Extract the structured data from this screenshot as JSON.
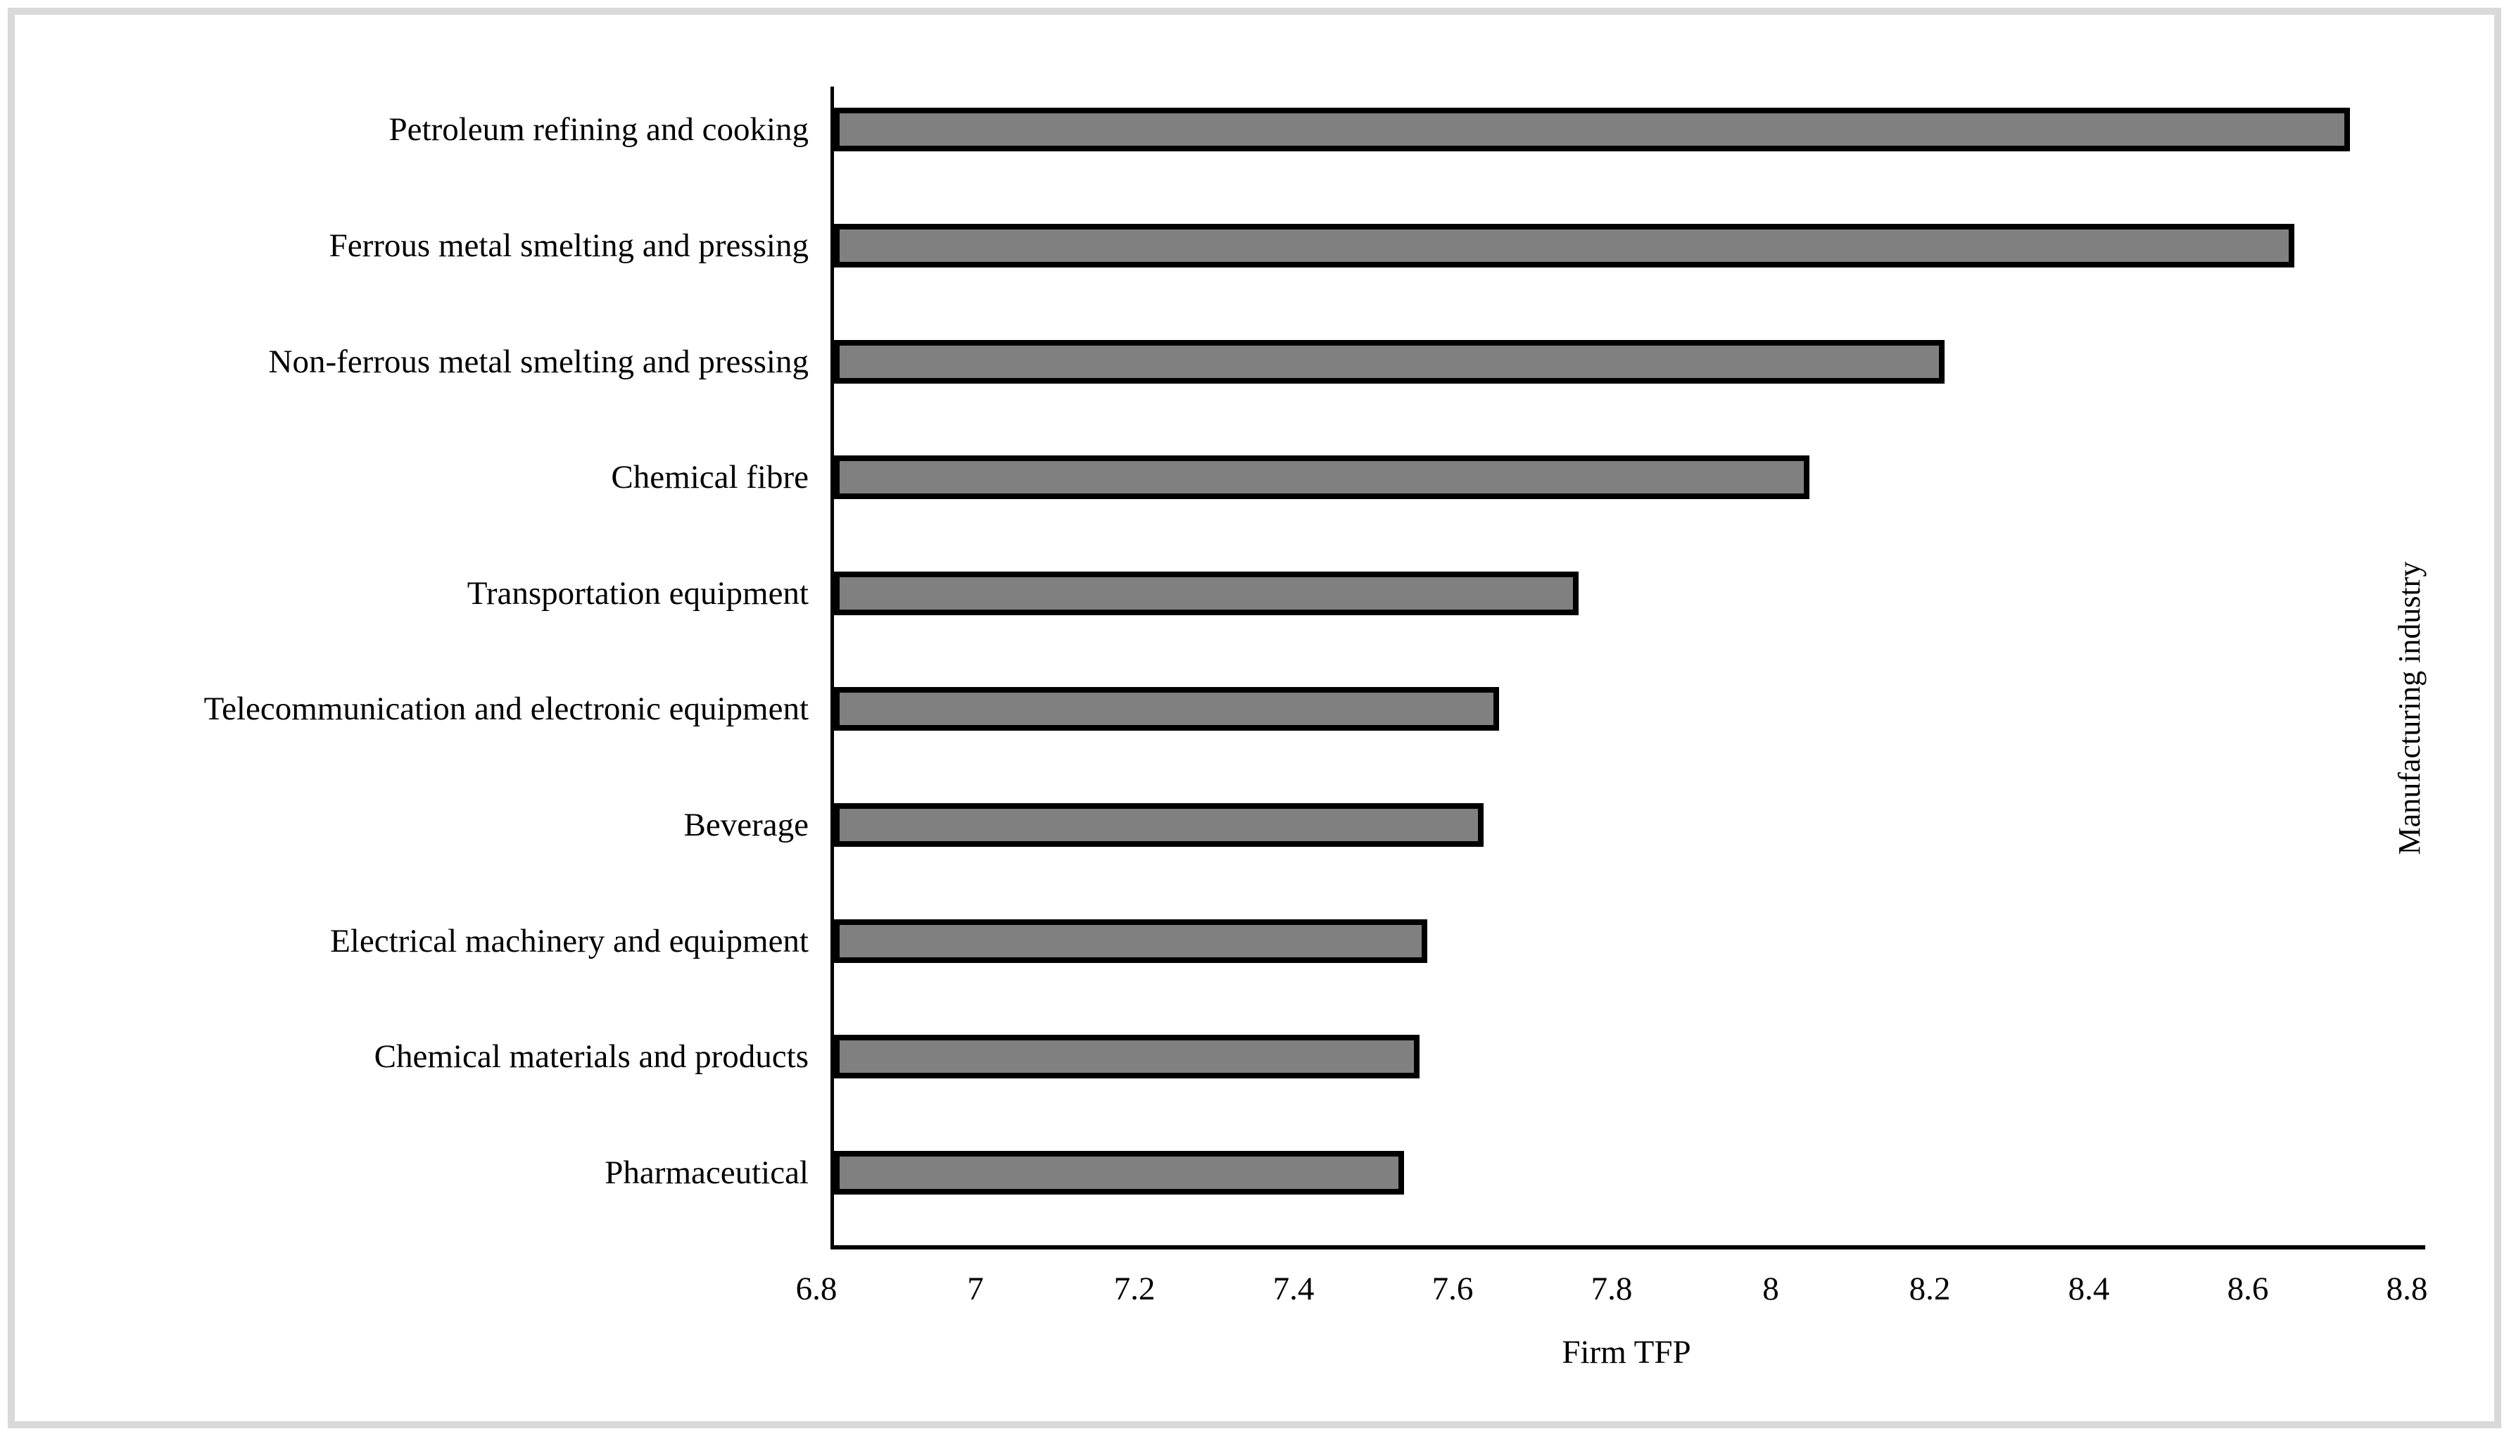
{
  "chart_data": {
    "type": "bar",
    "orientation": "horizontal",
    "title": "",
    "xlabel": "Firm TFP",
    "right_axis_label": "Manufacturing industry",
    "categories": [
      "Petroleum refining and cooking",
      "Ferrous metal smelting and pressing",
      "Non-ferrous metal smelting and pressing",
      "Chemical fibre",
      "Transportation equipment",
      "Telecommunication and electronic equipment",
      "Beverage",
      "Electrical machinery and equipment",
      "Chemical materials and products",
      "Pharmaceutical"
    ],
    "values": [
      8.71,
      8.64,
      8.2,
      8.03,
      7.74,
      7.64,
      7.62,
      7.55,
      7.54,
      7.52
    ],
    "xlim": [
      6.8,
      8.8
    ],
    "xticks": [
      6.8,
      7,
      7.2,
      7.4,
      7.6,
      7.8,
      8,
      8.2,
      8.4,
      8.6,
      8.8
    ],
    "xtick_labels": [
      "6.8",
      "7",
      "7.2",
      "7.4",
      "7.6",
      "7.8",
      "8",
      "8.2",
      "8.4",
      "8.6",
      "8.8"
    ],
    "grid": false,
    "legend": false,
    "bar_color": "#808080",
    "bar_border_color": "#000000",
    "axis_color": "#000000",
    "frame_color": "#d9d9d9"
  }
}
